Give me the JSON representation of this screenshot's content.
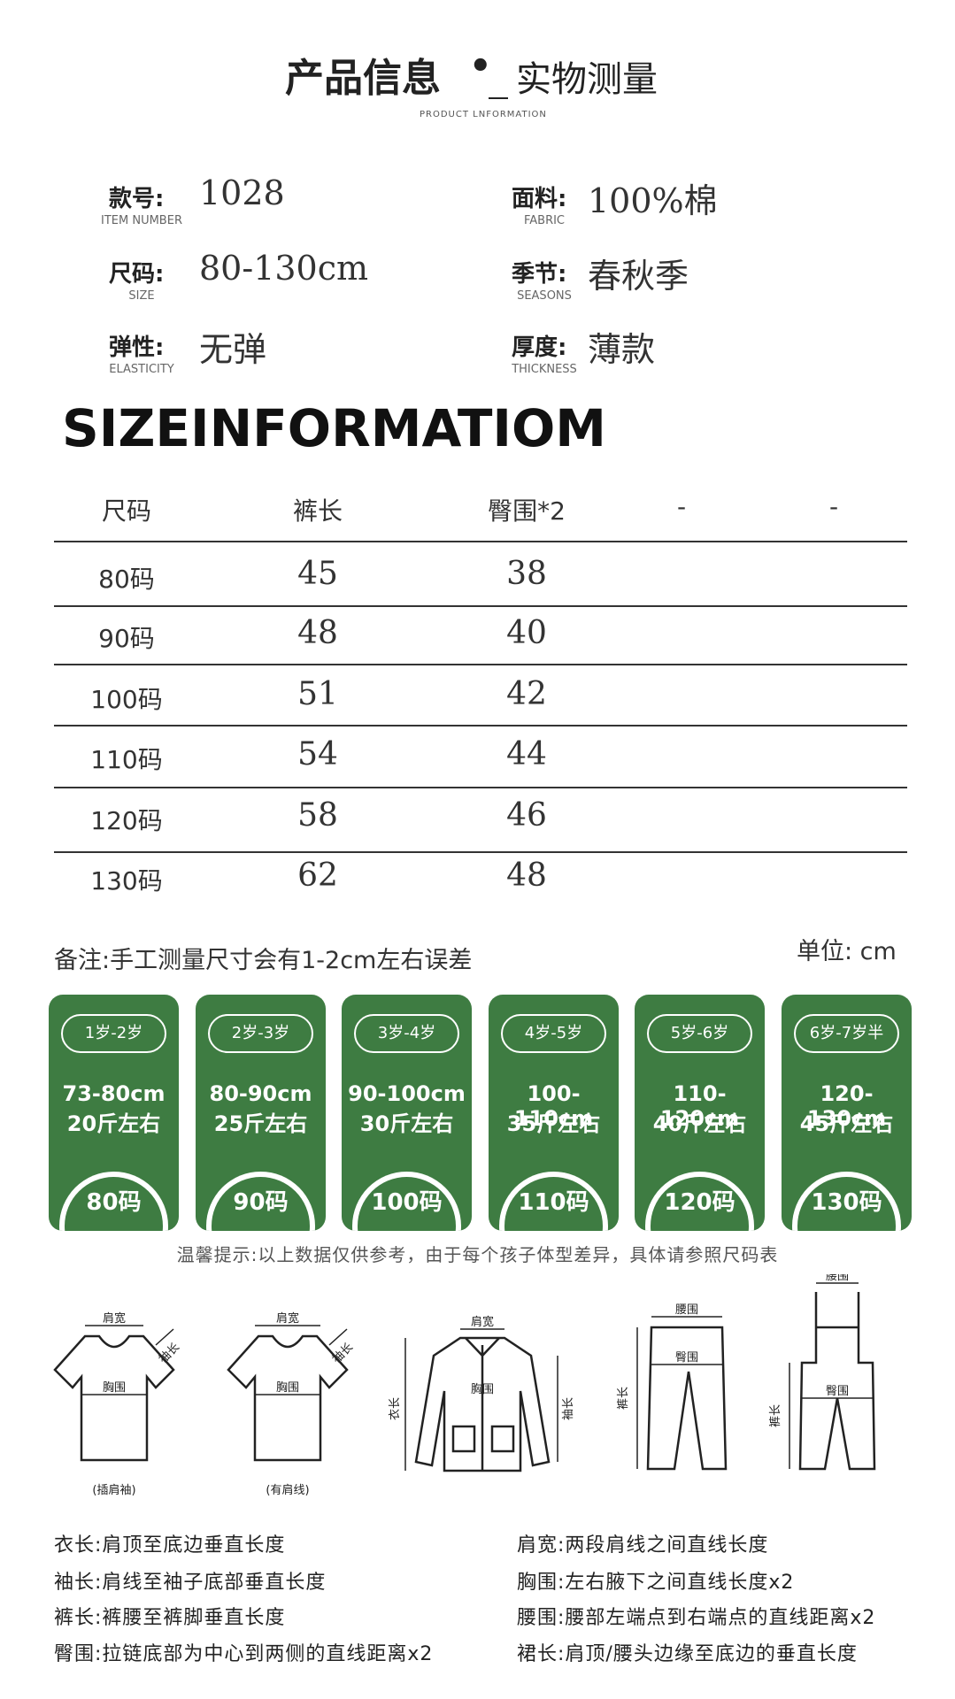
{
  "header": {
    "title": "产品信息",
    "dot": "•",
    "subtitle": "实物测量",
    "english": "PRODUCT LNFORMATION"
  },
  "specs": [
    {
      "label": "款号:",
      "label_en": "ITEM NUMBER",
      "value": "1028"
    },
    {
      "label": "面料:",
      "label_en": "FABRIC",
      "value": "100%棉"
    },
    {
      "label": "尺码:",
      "label_en": "SIZE",
      "value": "80-130cm"
    },
    {
      "label": "季节:",
      "label_en": "SEASONS",
      "value": "春秋季"
    },
    {
      "label": "弹性:",
      "label_en": "ELASTICITY",
      "value": "无弹"
    },
    {
      "label": "厚度:",
      "label_en": "THICKNESS",
      "value": "薄款"
    }
  ],
  "size_heading": "SIZEINFORMATIOM",
  "table": {
    "headers": [
      "尺码",
      "裤长",
      "臀围*2",
      "-",
      "-"
    ],
    "rows": [
      [
        "80码",
        45,
        38
      ],
      [
        "90码",
        48,
        40
      ],
      [
        "100码",
        51,
        42
      ],
      [
        "110码",
        54,
        44
      ],
      [
        "120码",
        58,
        46
      ],
      [
        "130码",
        62,
        48
      ]
    ]
  },
  "note": "备注:手工测量尺寸会有1-2cm左右误差",
  "unit": "单位: cm",
  "cards": [
    {
      "age": "1岁-2岁",
      "height": "73-80cm",
      "weight": "20斤左右",
      "size": "80码"
    },
    {
      "age": "2岁-3岁",
      "height": "80-90cm",
      "weight": "25斤左右",
      "size": "90码"
    },
    {
      "age": "3岁-4岁",
      "height": "90-100cm",
      "weight": "30斤左右",
      "size": "100码"
    },
    {
      "age": "4岁-5岁",
      "height": "100-110cm",
      "weight": "35斤左右",
      "size": "110码"
    },
    {
      "age": "5岁-6岁",
      "height": "110-120cm",
      "weight": "40斤左右",
      "size": "120码"
    },
    {
      "age": "6岁-7岁半",
      "height": "120-130cm",
      "weight": "45斤左右",
      "size": "130码"
    }
  ],
  "tip": "温馨提示:以上数据仅供参考，由于每个孩子体型差异，具体请参照尺码表",
  "diagrams": [
    {
      "labels": [
        "肩宽",
        "袖长",
        "胸围"
      ],
      "caption": "(插肩袖)"
    },
    {
      "labels": [
        "肩宽",
        "袖长",
        "胸围"
      ],
      "caption": "(有肩线)"
    },
    {
      "labels": [
        "肩宽",
        "胸围",
        "衣长",
        "袖长"
      ]
    },
    {
      "labels": [
        "腰围",
        "臀围",
        "裤长"
      ]
    },
    {
      "labels": [
        "腰围",
        "裤长",
        "臀围"
      ]
    }
  ],
  "definitions": [
    "衣长:肩顶至底边垂直长度",
    "肩宽:两段肩线之间直线长度",
    "袖长:肩线至袖子底部垂直长度",
    "胸围:左右腋下之间直线长度x2",
    "裤长:裤腰至裤脚垂直长度",
    "腰围:腰部左端点到右端点的直线距离x2",
    "臀围:拉链底部为中心到两侧的直线距离x2",
    "裙长:肩顶/腰头边缘至底边的垂直长度"
  ]
}
